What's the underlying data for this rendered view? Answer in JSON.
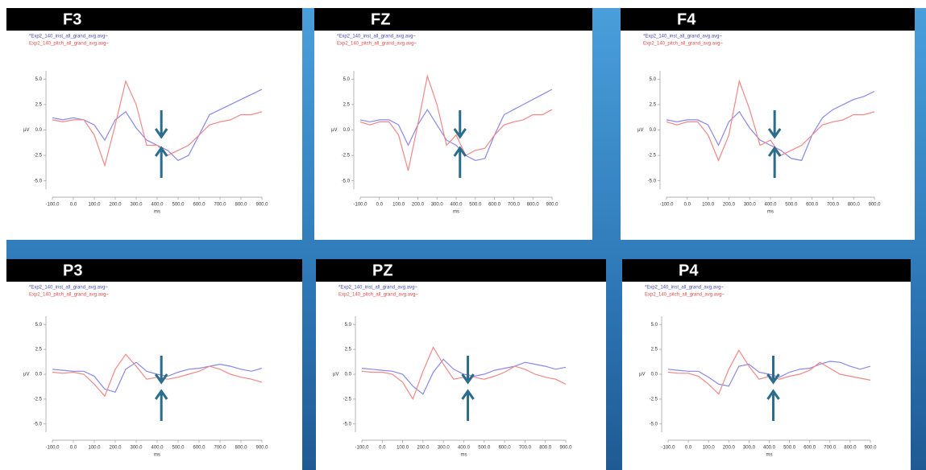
{
  "chart_data": [
    {
      "type": "line",
      "title": "F3",
      "xlabel": "ms",
      "ylabel": "µV",
      "x": [
        -100,
        -50,
        0,
        50,
        100,
        150,
        200,
        250,
        300,
        350,
        400,
        450,
        500,
        550,
        600,
        650,
        700,
        750,
        800,
        850,
        900
      ],
      "series": [
        {
          "name": "*Exp2_140_inst_all_grand_avg.avg~",
          "color": "#8888e8",
          "values": [
            1.2,
            1.0,
            1.2,
            1.0,
            0.5,
            -1.0,
            1.0,
            1.8,
            0.2,
            -1.0,
            -1.5,
            -2.0,
            -3.0,
            -2.5,
            -0.5,
            1.5,
            2.0,
            2.5,
            3.0,
            3.5,
            4.0
          ]
        },
        {
          "name": "Exp2_140_pitch_all_grand_avg.avg~",
          "color": "#f08888",
          "values": [
            1.0,
            0.8,
            1.0,
            1.0,
            -0.5,
            -3.5,
            0.5,
            4.8,
            2.5,
            -1.5,
            -1.5,
            -2.5,
            -2.0,
            -1.5,
            -0.5,
            0.5,
            0.8,
            1.0,
            1.5,
            1.5,
            1.8
          ]
        }
      ],
      "xlim": [
        -100,
        900
      ],
      "ylim": [
        -5.5,
        5.5
      ],
      "xticks": [
        {
          "value": -100,
          "label": "-100.0"
        },
        {
          "value": 0,
          "label": "0.0"
        },
        {
          "value": 100,
          "label": "100.0"
        },
        {
          "value": 200,
          "label": "200.0"
        },
        {
          "value": 300,
          "label": "300.0"
        },
        {
          "value": 400,
          "label": "400.0"
        },
        {
          "value": 500,
          "label": "500.0"
        },
        {
          "value": 600,
          "label": "600.0"
        },
        {
          "value": 700,
          "label": "700.0"
        },
        {
          "value": 800,
          "label": "800.0"
        },
        {
          "value": 900,
          "label": "900.0"
        }
      ],
      "yticks": [
        {
          "value": 5,
          "label": "5.0"
        },
        {
          "value": 2.5,
          "label": "2.5"
        },
        {
          "value": 0,
          "label": "0.0"
        },
        {
          "value": -2.5,
          "label": "-2.5"
        },
        {
          "value": -5,
          "label": "-5.0"
        }
      ]
    },
    {
      "type": "line",
      "title": "FZ",
      "xlabel": "ms",
      "ylabel": "µV",
      "x": [
        -100,
        -50,
        0,
        50,
        100,
        150,
        200,
        250,
        300,
        350,
        400,
        450,
        500,
        550,
        600,
        650,
        700,
        750,
        800,
        850,
        900
      ],
      "series": [
        {
          "name": "*Exp2_140_inst_all_grand_avg.avg~",
          "color": "#8888e8",
          "values": [
            1.0,
            0.8,
            1.0,
            1.0,
            0.5,
            -1.5,
            0.5,
            2.0,
            0.5,
            -1.0,
            -1.5,
            -2.5,
            -3.0,
            -2.8,
            -0.5,
            1.5,
            2.0,
            2.5,
            3.0,
            3.5,
            4.0
          ]
        },
        {
          "name": "Exp2_140_pitch_all_grand_avg.avg~",
          "color": "#f08888",
          "values": [
            0.8,
            0.5,
            0.8,
            0.8,
            -0.5,
            -4.0,
            0.5,
            5.3,
            2.5,
            -1.5,
            -0.5,
            -2.5,
            -2.0,
            -1.8,
            -0.5,
            0.5,
            0.8,
            1.0,
            1.5,
            1.5,
            2.0
          ]
        }
      ],
      "xlim": [
        -100,
        900
      ],
      "ylim": [
        -5.5,
        5.5
      ],
      "xticks": [
        {
          "value": -100,
          "label": "-100.0"
        },
        {
          "value": 0,
          "label": "0.0"
        },
        {
          "value": 100,
          "label": "100.0"
        },
        {
          "value": 200,
          "label": "200.0"
        },
        {
          "value": 300,
          "label": "300.0"
        },
        {
          "value": 400,
          "label": "400.0"
        },
        {
          "value": 500,
          "label": "500.0"
        },
        {
          "value": 600,
          "label": "600.0"
        },
        {
          "value": 700,
          "label": "700.0"
        },
        {
          "value": 800,
          "label": "800.0"
        },
        {
          "value": 900,
          "label": "900.0"
        }
      ],
      "yticks": [
        {
          "value": 5,
          "label": "5.0"
        },
        {
          "value": 2.5,
          "label": "2.5"
        },
        {
          "value": 0,
          "label": "0.0"
        },
        {
          "value": -2.5,
          "label": "-2.5"
        },
        {
          "value": -5,
          "label": "-5.0"
        }
      ]
    },
    {
      "type": "line",
      "title": "F4",
      "xlabel": "ms",
      "ylabel": "µV",
      "x": [
        -100,
        -50,
        0,
        50,
        100,
        150,
        200,
        250,
        300,
        350,
        400,
        450,
        500,
        550,
        600,
        650,
        700,
        750,
        800,
        850,
        900
      ],
      "series": [
        {
          "name": "*Exp2_140_inst_all_grand_avg.avg~",
          "color": "#8888e8",
          "values": [
            1.0,
            0.8,
            1.0,
            1.0,
            0.5,
            -1.5,
            0.8,
            1.8,
            0.2,
            -1.0,
            -1.5,
            -2.0,
            -2.8,
            -3.0,
            -0.5,
            1.2,
            2.0,
            2.5,
            3.0,
            3.3,
            3.8
          ]
        },
        {
          "name": "Exp2_140_pitch_all_grand_avg.avg~",
          "color": "#f08888",
          "values": [
            0.8,
            0.5,
            0.8,
            0.8,
            -0.5,
            -3.0,
            -0.5,
            4.8,
            2.0,
            -1.5,
            -1.0,
            -2.5,
            -2.0,
            -1.5,
            -0.5,
            0.5,
            0.8,
            1.0,
            1.5,
            1.5,
            1.8
          ]
        }
      ],
      "xlim": [
        -100,
        900
      ],
      "ylim": [
        -5.5,
        5.5
      ],
      "xticks": [
        {
          "value": -100,
          "label": "-100.0"
        },
        {
          "value": 0,
          "label": "0.0"
        },
        {
          "value": 100,
          "label": "100.0"
        },
        {
          "value": 200,
          "label": "200.0"
        },
        {
          "value": 300,
          "label": "300.0"
        },
        {
          "value": 400,
          "label": "400.0"
        },
        {
          "value": 500,
          "label": "500.0"
        },
        {
          "value": 600,
          "label": "600.0"
        },
        {
          "value": 700,
          "label": "700.0"
        },
        {
          "value": 800,
          "label": "800.0"
        },
        {
          "value": 900,
          "label": "900.0"
        }
      ],
      "yticks": [
        {
          "value": 5,
          "label": "5.0"
        },
        {
          "value": 2.5,
          "label": "2.5"
        },
        {
          "value": 0,
          "label": "0.0"
        },
        {
          "value": -2.5,
          "label": "-2.5"
        },
        {
          "value": -5,
          "label": "-5.0"
        }
      ]
    },
    {
      "type": "line",
      "title": "P3",
      "xlabel": "ms",
      "ylabel": "µV",
      "x": [
        -100,
        -50,
        0,
        50,
        100,
        150,
        200,
        250,
        300,
        350,
        400,
        450,
        500,
        550,
        600,
        650,
        700,
        750,
        800,
        850,
        900
      ],
      "series": [
        {
          "name": "*Exp2_140_inst_all_grand_avg.avg~",
          "color": "#8888e8",
          "values": [
            0.5,
            0.4,
            0.3,
            0.3,
            -0.2,
            -1.5,
            -1.8,
            0.5,
            1.2,
            0.3,
            0.0,
            -0.2,
            0.2,
            0.5,
            0.6,
            0.8,
            1.0,
            0.8,
            0.5,
            0.3,
            0.6
          ]
        },
        {
          "name": "Exp2_140_pitch_all_grand_avg.avg~",
          "color": "#f08888",
          "values": [
            0.2,
            0.1,
            0.2,
            0.0,
            -1.0,
            -2.2,
            0.5,
            2.0,
            0.8,
            -0.5,
            -0.3,
            -0.5,
            -0.3,
            0.0,
            0.3,
            0.8,
            0.5,
            0.0,
            -0.3,
            -0.5,
            -0.8
          ]
        }
      ],
      "xlim": [
        -100,
        900
      ],
      "ylim": [
        -5.5,
        5.5
      ],
      "xticks": [
        {
          "value": -100,
          "label": "-100.0"
        },
        {
          "value": 0,
          "label": "0.0"
        },
        {
          "value": 100,
          "label": "100.0"
        },
        {
          "value": 200,
          "label": "200.0"
        },
        {
          "value": 300,
          "label": "300.0"
        },
        {
          "value": 400,
          "label": "400.0"
        },
        {
          "value": 500,
          "label": "500.0"
        },
        {
          "value": 600,
          "label": "600.0"
        },
        {
          "value": 700,
          "label": "700.0"
        },
        {
          "value": 800,
          "label": "800.0"
        },
        {
          "value": 900,
          "label": "900.0"
        }
      ],
      "yticks": [
        {
          "value": 5,
          "label": "5.0"
        },
        {
          "value": 2.5,
          "label": "2.5"
        },
        {
          "value": 0,
          "label": "0.0"
        },
        {
          "value": -2.5,
          "label": "-2.5"
        },
        {
          "value": -5,
          "label": "-5.0"
        }
      ]
    },
    {
      "type": "line",
      "title": "PZ",
      "xlabel": "ms",
      "ylabel": "µV",
      "x": [
        -100,
        -50,
        0,
        50,
        100,
        150,
        200,
        250,
        300,
        350,
        400,
        450,
        500,
        550,
        600,
        650,
        700,
        750,
        800,
        850,
        900
      ],
      "series": [
        {
          "name": "*Exp2_140_inst_all_grand_avg.avg~",
          "color": "#8888e8",
          "values": [
            0.6,
            0.5,
            0.4,
            0.3,
            0.0,
            -1.2,
            -2.0,
            0.2,
            1.5,
            0.5,
            0.0,
            -0.2,
            0.0,
            0.4,
            0.6,
            0.8,
            1.2,
            1.0,
            0.8,
            0.5,
            0.7
          ]
        },
        {
          "name": "Exp2_140_pitch_all_grand_avg.avg~",
          "color": "#f08888",
          "values": [
            0.3,
            0.2,
            0.2,
            0.0,
            -0.8,
            -2.5,
            0.3,
            2.7,
            1.0,
            -0.5,
            -0.3,
            -0.3,
            -0.5,
            -0.2,
            0.2,
            0.8,
            0.5,
            0.0,
            -0.3,
            -0.5,
            -1.0
          ]
        }
      ],
      "xlim": [
        -100,
        900
      ],
      "ylim": [
        -5.5,
        5.5
      ],
      "xticks": [
        {
          "value": -100,
          "label": "-100.0"
        },
        {
          "value": 0,
          "label": "0.0"
        },
        {
          "value": 100,
          "label": "100.0"
        },
        {
          "value": 200,
          "label": "200.0"
        },
        {
          "value": 300,
          "label": "300.0"
        },
        {
          "value": 400,
          "label": "400.0"
        },
        {
          "value": 500,
          "label": "500.0"
        },
        {
          "value": 600,
          "label": "600.0"
        },
        {
          "value": 700,
          "label": "700.0"
        },
        {
          "value": 800,
          "label": "800.0"
        },
        {
          "value": 900,
          "label": "900.0"
        }
      ],
      "yticks": [
        {
          "value": 5,
          "label": "5.0"
        },
        {
          "value": 2.5,
          "label": "2.5"
        },
        {
          "value": 0,
          "label": "0.0"
        },
        {
          "value": -2.5,
          "label": "-2.5"
        },
        {
          "value": -5,
          "label": "-5.0"
        }
      ]
    },
    {
      "type": "line",
      "title": "P4",
      "xlabel": "ms",
      "ylabel": "µV",
      "x": [
        -100,
        -50,
        0,
        50,
        100,
        150,
        200,
        250,
        300,
        350,
        400,
        450,
        500,
        550,
        600,
        650,
        700,
        750,
        800,
        850,
        900
      ],
      "series": [
        {
          "name": "*Exp2_140_inst_all_grand_avg.avg~",
          "color": "#8888e8",
          "values": [
            0.5,
            0.4,
            0.3,
            0.3,
            -0.3,
            -1.0,
            -1.2,
            0.8,
            1.0,
            0.2,
            0.0,
            -0.3,
            0.2,
            0.5,
            0.6,
            1.0,
            1.3,
            1.2,
            0.8,
            0.5,
            0.8
          ]
        },
        {
          "name": "Exp2_140_pitch_all_grand_avg.avg~",
          "color": "#f08888",
          "values": [
            0.2,
            0.1,
            0.1,
            -0.2,
            -1.0,
            -2.0,
            0.5,
            2.4,
            0.8,
            -0.5,
            -0.2,
            -0.5,
            -0.2,
            0.0,
            0.4,
            1.2,
            0.6,
            0.0,
            -0.2,
            -0.4,
            -0.6
          ]
        }
      ],
      "xlim": [
        -100,
        900
      ],
      "ylim": [
        -5.5,
        5.5
      ],
      "xticks": [
        {
          "value": -100,
          "label": "-100.0"
        },
        {
          "value": 0,
          "label": "0.0"
        },
        {
          "value": 100,
          "label": "100.0"
        },
        {
          "value": 200,
          "label": "200.0"
        },
        {
          "value": 300,
          "label": "300.0"
        },
        {
          "value": 400,
          "label": "400.0"
        },
        {
          "value": 500,
          "label": "500.0"
        },
        {
          "value": 600,
          "label": "600.0"
        },
        {
          "value": 700,
          "label": "700.0"
        },
        {
          "value": 800,
          "label": "800.0"
        },
        {
          "value": 900,
          "label": "900.0"
        }
      ],
      "yticks": [
        {
          "value": 5,
          "label": "5.0"
        },
        {
          "value": 2.5,
          "label": "2.5"
        },
        {
          "value": 0,
          "label": "0.0"
        },
        {
          "value": -2.5,
          "label": "-2.5"
        },
        {
          "value": -5,
          "label": "-5.0"
        }
      ]
    }
  ]
}
